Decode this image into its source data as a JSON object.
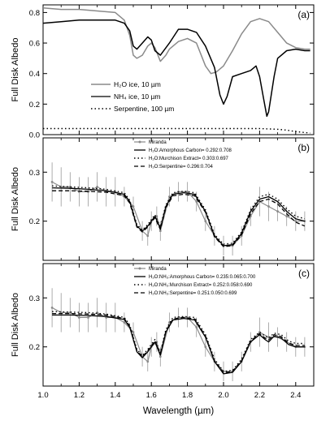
{
  "figure": {
    "xlabel": "Wavelength (µm)",
    "x_ticks": [
      "1.0",
      "1.2",
      "1.4",
      "1.6",
      "1.8",
      "2.0",
      "2.2",
      "2.4"
    ],
    "colors": {
      "gray": "#8a8a8a",
      "black": "#000000",
      "errbar": "#9a9a9a"
    }
  },
  "chart_data": [
    {
      "type": "line",
      "panel": "(a)",
      "ylabel": "Full Disk Albedo",
      "xlim": [
        1.0,
        2.5
      ],
      "ylim": [
        0.0,
        0.85
      ],
      "y_ticks": [
        "0.0",
        "0.2",
        "0.4",
        "0.6",
        "0.8"
      ],
      "legend_location": "lower-left",
      "series": [
        {
          "name": "H₂O ice, 10 µm",
          "style": "gray-solid",
          "x": [
            1.0,
            1.1,
            1.2,
            1.3,
            1.4,
            1.45,
            1.48,
            1.5,
            1.52,
            1.55,
            1.58,
            1.6,
            1.62,
            1.65,
            1.68,
            1.7,
            1.75,
            1.8,
            1.85,
            1.9,
            1.93,
            1.96,
            2.0,
            2.05,
            2.1,
            2.15,
            2.2,
            2.25,
            2.3,
            2.35,
            2.4,
            2.45,
            2.48
          ],
          "y": [
            0.83,
            0.82,
            0.82,
            0.81,
            0.8,
            0.75,
            0.65,
            0.52,
            0.5,
            0.52,
            0.58,
            0.6,
            0.57,
            0.48,
            0.52,
            0.56,
            0.61,
            0.63,
            0.6,
            0.45,
            0.4,
            0.41,
            0.45,
            0.55,
            0.66,
            0.74,
            0.76,
            0.74,
            0.67,
            0.6,
            0.57,
            0.56,
            0.56
          ]
        },
        {
          "name": "NH₄ ice, 10 µm",
          "style": "black-solid",
          "x": [
            1.0,
            1.1,
            1.2,
            1.3,
            1.4,
            1.45,
            1.48,
            1.5,
            1.52,
            1.55,
            1.58,
            1.6,
            1.62,
            1.65,
            1.7,
            1.75,
            1.8,
            1.85,
            1.9,
            1.95,
            1.98,
            2.0,
            2.02,
            2.05,
            2.1,
            2.15,
            2.18,
            2.2,
            2.22,
            2.24,
            2.25,
            2.28,
            2.3,
            2.35,
            2.4,
            2.45,
            2.48
          ],
          "y": [
            0.73,
            0.74,
            0.75,
            0.75,
            0.75,
            0.73,
            0.68,
            0.58,
            0.56,
            0.6,
            0.64,
            0.62,
            0.55,
            0.52,
            0.6,
            0.69,
            0.69,
            0.67,
            0.58,
            0.44,
            0.26,
            0.2,
            0.25,
            0.38,
            0.4,
            0.42,
            0.45,
            0.38,
            0.25,
            0.12,
            0.15,
            0.38,
            0.5,
            0.55,
            0.56,
            0.55,
            0.55
          ]
        },
        {
          "name": "Serpentine, 100 µm",
          "style": "black-dotted",
          "x": [
            1.0,
            1.3,
            1.6,
            1.8,
            2.0,
            2.1,
            2.2,
            2.3,
            2.35,
            2.4,
            2.48
          ],
          "y": [
            0.04,
            0.04,
            0.04,
            0.04,
            0.04,
            0.04,
            0.04,
            0.035,
            0.03,
            0.02,
            0.01
          ]
        }
      ]
    },
    {
      "type": "scatter",
      "panel": "(b)",
      "ylabel": "Full Disk Albedo",
      "xlim": [
        1.0,
        2.5
      ],
      "ylim": [
        0.12,
        0.37
      ],
      "y_ticks": [
        "0.2",
        "0.3"
      ],
      "legend_location": "top-center",
      "observed": {
        "name": "Miranda",
        "x": [
          1.05,
          1.1,
          1.15,
          1.2,
          1.25,
          1.3,
          1.35,
          1.4,
          1.45,
          1.5,
          1.55,
          1.58,
          1.6,
          1.63,
          1.65,
          1.7,
          1.75,
          1.8,
          1.85,
          1.9,
          1.95,
          2.0,
          2.05,
          2.1,
          2.15,
          2.2,
          2.25,
          2.3,
          2.35,
          2.4,
          2.45
        ],
        "y": [
          0.28,
          0.27,
          0.27,
          0.26,
          0.26,
          0.27,
          0.26,
          0.26,
          0.25,
          0.23,
          0.18,
          0.17,
          0.2,
          0.21,
          0.18,
          0.25,
          0.26,
          0.26,
          0.24,
          0.2,
          0.17,
          0.15,
          0.15,
          0.17,
          0.21,
          0.24,
          0.23,
          0.22,
          0.21,
          0.2,
          0.2
        ],
        "err": [
          0.04,
          0.04,
          0.03,
          0.03,
          0.03,
          0.03,
          0.03,
          0.03,
          0.02,
          0.02,
          0.02,
          0.02,
          0.02,
          0.02,
          0.02,
          0.02,
          0.02,
          0.02,
          0.02,
          0.02,
          0.02,
          0.02,
          0.02,
          0.02,
          0.02,
          0.03,
          0.03,
          0.02,
          0.02,
          0.02,
          0.02
        ]
      },
      "series": [
        {
          "name": "H₂O:Amorphous Carbon= 0.292:0.708",
          "style": "solid",
          "x": [
            1.05,
            1.15,
            1.25,
            1.35,
            1.45,
            1.48,
            1.52,
            1.55,
            1.58,
            1.62,
            1.65,
            1.68,
            1.72,
            1.78,
            1.84,
            1.9,
            1.95,
            2.0,
            2.05,
            2.1,
            2.15,
            2.2,
            2.25,
            2.3,
            2.35,
            2.4,
            2.45
          ],
          "y": [
            0.268,
            0.267,
            0.265,
            0.262,
            0.255,
            0.24,
            0.19,
            0.18,
            0.19,
            0.21,
            0.185,
            0.23,
            0.255,
            0.258,
            0.255,
            0.22,
            0.17,
            0.15,
            0.152,
            0.175,
            0.22,
            0.245,
            0.25,
            0.24,
            0.22,
            0.205,
            0.2
          ]
        },
        {
          "name": "H₂O:Murchison Extract= 0.303:0.697",
          "style": "dotted",
          "x": [
            1.05,
            1.15,
            1.25,
            1.35,
            1.45,
            1.48,
            1.52,
            1.55,
            1.58,
            1.62,
            1.65,
            1.68,
            1.72,
            1.78,
            1.84,
            1.9,
            1.95,
            2.0,
            2.05,
            2.1,
            2.15,
            2.2,
            2.25,
            2.3,
            2.35,
            2.4,
            2.45
          ],
          "y": [
            0.272,
            0.27,
            0.268,
            0.265,
            0.258,
            0.243,
            0.193,
            0.182,
            0.193,
            0.213,
            0.188,
            0.233,
            0.258,
            0.261,
            0.258,
            0.223,
            0.173,
            0.153,
            0.155,
            0.178,
            0.223,
            0.25,
            0.255,
            0.245,
            0.225,
            0.21,
            0.205
          ]
        },
        {
          "name": "H₂O:Serpentine= 0.296:0.704",
          "style": "dashed",
          "x": [
            1.05,
            1.15,
            1.25,
            1.35,
            1.45,
            1.48,
            1.52,
            1.55,
            1.58,
            1.62,
            1.65,
            1.68,
            1.72,
            1.78,
            1.84,
            1.9,
            1.95,
            2.0,
            2.05,
            2.1,
            2.15,
            2.2,
            2.25,
            2.3,
            2.35,
            2.4,
            2.45
          ],
          "y": [
            0.262,
            0.262,
            0.261,
            0.259,
            0.252,
            0.237,
            0.188,
            0.178,
            0.188,
            0.207,
            0.183,
            0.227,
            0.252,
            0.255,
            0.252,
            0.218,
            0.168,
            0.148,
            0.15,
            0.172,
            0.215,
            0.24,
            0.245,
            0.235,
            0.215,
            0.198,
            0.19
          ]
        }
      ]
    },
    {
      "type": "scatter",
      "panel": "(c)",
      "ylabel": "Full Disk Albedo",
      "xlim": [
        1.0,
        2.5
      ],
      "ylim": [
        0.12,
        0.37
      ],
      "y_ticks": [
        "0.2",
        "0.3"
      ],
      "legend_location": "top-center",
      "observed": {
        "name": "Miranda",
        "x": [
          1.05,
          1.1,
          1.15,
          1.2,
          1.25,
          1.3,
          1.35,
          1.4,
          1.45,
          1.5,
          1.55,
          1.58,
          1.6,
          1.63,
          1.65,
          1.7,
          1.75,
          1.8,
          1.85,
          1.9,
          1.95,
          2.0,
          2.05,
          2.1,
          2.15,
          2.2,
          2.25,
          2.3,
          2.35,
          2.4,
          2.45
        ],
        "y": [
          0.28,
          0.27,
          0.27,
          0.26,
          0.26,
          0.27,
          0.26,
          0.26,
          0.25,
          0.23,
          0.18,
          0.17,
          0.2,
          0.21,
          0.18,
          0.25,
          0.26,
          0.26,
          0.24,
          0.2,
          0.17,
          0.15,
          0.15,
          0.17,
          0.21,
          0.23,
          0.22,
          0.22,
          0.21,
          0.2,
          0.2
        ],
        "err": [
          0.04,
          0.04,
          0.03,
          0.03,
          0.03,
          0.03,
          0.03,
          0.03,
          0.02,
          0.02,
          0.02,
          0.02,
          0.02,
          0.02,
          0.02,
          0.02,
          0.02,
          0.02,
          0.02,
          0.02,
          0.02,
          0.02,
          0.02,
          0.02,
          0.02,
          0.03,
          0.03,
          0.02,
          0.02,
          0.02,
          0.02
        ]
      },
      "series": [
        {
          "name": "H₂O:NH₃:Amorphous Carbon= 0.235:0.065:0.700",
          "style": "solid",
          "x": [
            1.05,
            1.15,
            1.25,
            1.35,
            1.45,
            1.48,
            1.52,
            1.55,
            1.58,
            1.62,
            1.65,
            1.68,
            1.72,
            1.78,
            1.84,
            1.9,
            1.95,
            2.0,
            2.05,
            2.1,
            2.15,
            2.2,
            2.23,
            2.25,
            2.28,
            2.32,
            2.36,
            2.4,
            2.45
          ],
          "y": [
            0.265,
            0.265,
            0.264,
            0.262,
            0.256,
            0.24,
            0.19,
            0.178,
            0.19,
            0.21,
            0.183,
            0.23,
            0.255,
            0.258,
            0.255,
            0.22,
            0.17,
            0.145,
            0.148,
            0.17,
            0.21,
            0.225,
            0.215,
            0.21,
            0.222,
            0.218,
            0.205,
            0.2,
            0.2
          ]
        },
        {
          "name": "H₂O:NH₃:Murchison Extract= 0.252:0.058:0.690",
          "style": "dotted",
          "x": [
            1.05,
            1.15,
            1.25,
            1.35,
            1.45,
            1.48,
            1.52,
            1.55,
            1.58,
            1.62,
            1.65,
            1.68,
            1.72,
            1.78,
            1.84,
            1.9,
            1.95,
            2.0,
            2.05,
            2.1,
            2.15,
            2.2,
            2.23,
            2.25,
            2.28,
            2.32,
            2.36,
            2.4,
            2.45
          ],
          "y": [
            0.272,
            0.271,
            0.27,
            0.267,
            0.26,
            0.245,
            0.195,
            0.182,
            0.195,
            0.215,
            0.188,
            0.235,
            0.26,
            0.262,
            0.26,
            0.225,
            0.175,
            0.15,
            0.152,
            0.175,
            0.215,
            0.23,
            0.222,
            0.218,
            0.228,
            0.225,
            0.212,
            0.207,
            0.207
          ]
        },
        {
          "name": "H₂O:NH₃:Serpentine= 0.251:0.050:0.699",
          "style": "dashed",
          "x": [
            1.05,
            1.15,
            1.25,
            1.35,
            1.45,
            1.48,
            1.52,
            1.55,
            1.58,
            1.62,
            1.65,
            1.68,
            1.72,
            1.78,
            1.84,
            1.9,
            1.95,
            2.0,
            2.05,
            2.1,
            2.15,
            2.2,
            2.23,
            2.25,
            2.28,
            2.32,
            2.36,
            2.4,
            2.45
          ],
          "y": [
            0.268,
            0.268,
            0.267,
            0.265,
            0.258,
            0.242,
            0.192,
            0.18,
            0.192,
            0.212,
            0.186,
            0.232,
            0.257,
            0.26,
            0.257,
            0.222,
            0.172,
            0.147,
            0.15,
            0.172,
            0.212,
            0.227,
            0.218,
            0.214,
            0.225,
            0.221,
            0.208,
            0.203,
            0.203
          ]
        }
      ]
    }
  ]
}
